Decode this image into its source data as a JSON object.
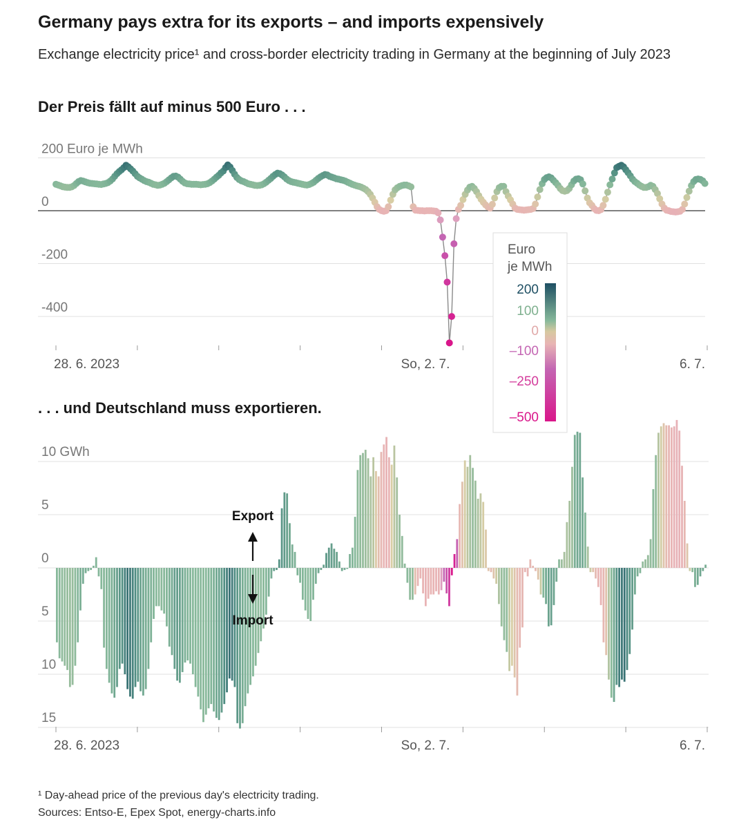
{
  "title": "Germany pays extra for its exports – and imports expensively",
  "subtitle": "Exchange electricity price¹ and cross-border electricity trading in Germany at the beginning of July 2023",
  "section_price": "Der Preis fällt auf minus 500 Euro . . .",
  "section_trade": ". . . und Deutschland muss exportieren.",
  "footnote": "¹ Day-ahead price of the previous day's electricity trading.",
  "sources": "Sources: Entso-E, Epex Spot, energy-charts.info",
  "legend": {
    "title_line1": "Euro",
    "title_line2": "je MWh",
    "labels": [
      "200",
      "100",
      "0",
      "–100",
      "–250",
      "–500"
    ],
    "colors": [
      "#1e4f63",
      "#86b89a",
      "#e8b4b4",
      "#c466b3",
      "#d9168a"
    ]
  },
  "chart_data": [
    {
      "type": "scatter",
      "name": "price",
      "title": "Der Preis fällt auf minus 500 Euro . . .",
      "ylabel": "Euro je MWh",
      "ylim": [
        -500,
        200
      ],
      "yticks": [
        200,
        0,
        -200,
        -400
      ],
      "ytick_labels": [
        "200 Euro je MWh",
        "0",
        "-200",
        "-400"
      ],
      "x_tick_labels": [
        "28. 6. 2023",
        "So, 2. 7.",
        "6. 7."
      ],
      "x_start_hour": 0,
      "x_hours": 216,
      "hour_start": 0,
      "values": [
        100,
        97,
        94,
        91,
        89,
        88,
        88,
        90,
        95,
        103,
        110,
        114,
        112,
        109,
        106,
        104,
        103,
        102,
        101,
        100,
        99,
        101,
        103,
        106,
        112,
        120,
        130,
        140,
        148,
        155,
        163,
        172,
        166,
        158,
        150,
        140,
        130,
        124,
        119,
        114,
        110,
        108,
        104,
        100,
        98,
        96,
        97,
        100,
        104,
        110,
        117,
        124,
        130,
        131,
        127,
        119,
        111,
        105,
        102,
        101,
        100,
        100,
        100,
        99,
        98,
        99,
        100,
        102,
        106,
        112,
        119,
        127,
        134,
        143,
        150,
        163,
        173,
        165,
        152,
        138,
        126,
        118,
        113,
        110,
        106,
        102,
        100,
        98,
        96,
        95,
        96,
        98,
        102,
        108,
        115,
        122,
        130,
        137,
        142,
        140,
        135,
        128,
        120,
        114,
        110,
        108,
        106,
        104,
        102,
        100,
        98,
        97,
        99,
        103,
        108,
        115,
        122,
        128,
        133,
        137,
        135,
        130,
        127,
        124,
        121,
        119,
        117,
        115,
        112,
        108,
        104,
        100,
        97,
        94,
        92,
        89,
        85,
        80,
        72,
        62,
        48,
        32,
        15,
        5,
        0,
        -2,
        0,
        15,
        40,
        62,
        79,
        87,
        92,
        95,
        97,
        97,
        94,
        90,
        15,
        2,
        1,
        0,
        0,
        -1,
        0,
        0,
        0,
        -1,
        -2,
        -8,
        -35,
        -100,
        -170,
        -270,
        -500,
        -400,
        -125,
        -30,
        5,
        20,
        42,
        62,
        78,
        89,
        92,
        84,
        72,
        57,
        43,
        32,
        22,
        14,
        10,
        24,
        48,
        72,
        87,
        92,
        92,
        72,
        55,
        41,
        25,
        10,
        5,
        4,
        3,
        2,
        3,
        4,
        5,
        8,
        25,
        52,
        80,
        102,
        118,
        125,
        128,
        124,
        115,
        106,
        96,
        84,
        76,
        74,
        76,
        84,
        98,
        112,
        119,
        121,
        117,
        101,
        75,
        48,
        30,
        20,
        8,
        1,
        0,
        4,
        20,
        43,
        70,
        98,
        120,
        143,
        163,
        168,
        172,
        166,
        155,
        144,
        132,
        119,
        110,
        104,
        97,
        92,
        88,
        88,
        91,
        96,
        92,
        80,
        65,
        45,
        25,
        10,
        2,
        0,
        -3,
        -4,
        -5,
        -4,
        -2,
        5,
        25,
        50,
        74,
        95,
        110,
        118,
        120,
        118,
        113,
        103
      ]
    },
    {
      "type": "bar",
      "name": "cross-border trade",
      "title": ". . . und Deutschland muss exportieren.",
      "ylabel": "GWh",
      "ylim": [
        -15,
        13
      ],
      "yticks": [
        10,
        5,
        0,
        -5,
        -10,
        -15
      ],
      "ytick_labels": [
        "10 GWh",
        "5",
        "0",
        "5",
        "10",
        "15"
      ],
      "x_tick_labels": [
        "28. 6. 2023",
        "So, 2. 7.",
        "6. 7."
      ],
      "annotations": [
        "Export",
        "Import"
      ],
      "x_start_hour": 0,
      "x_hours": 216,
      "hour_start": 0,
      "values": [
        -7.0,
        -8.5,
        -8.8,
        -9.2,
        -9.6,
        -11.2,
        -11.0,
        -9.2,
        -7.0,
        -4.0,
        -1.5,
        -0.5,
        -0.3,
        -0.2,
        0.2,
        1.0,
        -0.8,
        -2.0,
        -7.5,
        -9.5,
        -10.8,
        -11.8,
        -12.2,
        -11.2,
        -9.5,
        -9.0,
        -10.0,
        -11.4,
        -12.1,
        -12.3,
        -11.2,
        -10.7,
        -11.6,
        -12.0,
        -11.4,
        -9.5,
        -7.0,
        -4.8,
        -3.6,
        -3.6,
        -4.0,
        -4.3,
        -5.5,
        -7.4,
        -8.2,
        -9.5,
        -10.6,
        -10.8,
        -9.8,
        -8.9,
        -8.7,
        -9.0,
        -10.0,
        -11.2,
        -12.1,
        -13.3,
        -14.5,
        -13.8,
        -13.2,
        -12.8,
        -13.5,
        -14.1,
        -14.3,
        -13.6,
        -12.8,
        -11.7,
        -10.4,
        -10.6,
        -11.2,
        -14.6,
        -15.1,
        -14.6,
        -13.0,
        -11.8,
        -11.0,
        -10.2,
        -9.2,
        -8.0,
        -6.9,
        -5.7,
        -4.4,
        -2.7,
        -1.0,
        -0.3,
        -0.2,
        0.8,
        5.6,
        7.1,
        7.0,
        4.2,
        2.2,
        1.5,
        -0.7,
        -1.4,
        -3.0,
        -4.0,
        -4.8,
        -5.0,
        -3.0,
        -1.5,
        -0.5,
        -0.2,
        0.3,
        1.4,
        1.9,
        2.3,
        1.8,
        1.5,
        0.6,
        -0.3,
        -0.2,
        -0.1,
        1.3,
        1.9,
        4.8,
        9.2,
        10.6,
        10.8,
        11.1,
        10.3,
        8.6,
        10.4,
        9.1,
        8.6,
        10.9,
        11.6,
        12.3,
        10.4,
        9.7,
        11.5,
        8.5,
        5.0,
        3.0,
        0.4,
        -1.4,
        -3.0,
        -3.0,
        -2.5,
        -1.7,
        -1.0,
        -2.4,
        -3.6,
        -2.9,
        -2.5,
        -2.5,
        -2.2,
        -2.5,
        -2.1,
        -1.3,
        -2.4,
        -3.6,
        -0.7,
        1.3,
        2.7,
        6.0,
        8.1,
        10.1,
        9.5,
        10.6,
        9.4,
        8.2,
        6.5,
        7.0,
        6.2,
        3.6,
        -0.3,
        -0.4,
        -1.0,
        -1.5,
        -3.4,
        -5.5,
        -6.8,
        -7.9,
        -9.7,
        -9.2,
        -10.3,
        -12.0,
        -7.5,
        -5.6,
        -0.4,
        -0.8,
        0.8,
        0.2,
        -0.3,
        -1.1,
        -2.5,
        -2.8,
        -3.4,
        -5.5,
        -5.4,
        -3.5,
        -1.3,
        0.8,
        0.8,
        1.5,
        4.3,
        6.3,
        9.5,
        12.5,
        12.8,
        12.7,
        8.5,
        5.2,
        2.0,
        -0.4,
        -0.4,
        -1.0,
        -1.8,
        -3.5,
        -7.0,
        -8.2,
        -10.5,
        -12.2,
        -12.6,
        -11.0,
        -11.2,
        -10.5,
        -10.7,
        -9.6,
        -8.1,
        -5.8,
        -2.5,
        -0.8,
        -0.5,
        0.6,
        0.8,
        1.2,
        2.7,
        7.4,
        10.6,
        12.7,
        13.3,
        13.6,
        13.4,
        13.4,
        13.2,
        13.3,
        13.9,
        12.9,
        9.6,
        6.3,
        2.3,
        -0.3,
        -0.4,
        -1.8,
        -1.6,
        -0.8,
        -0.3,
        0.3
      ]
    }
  ]
}
